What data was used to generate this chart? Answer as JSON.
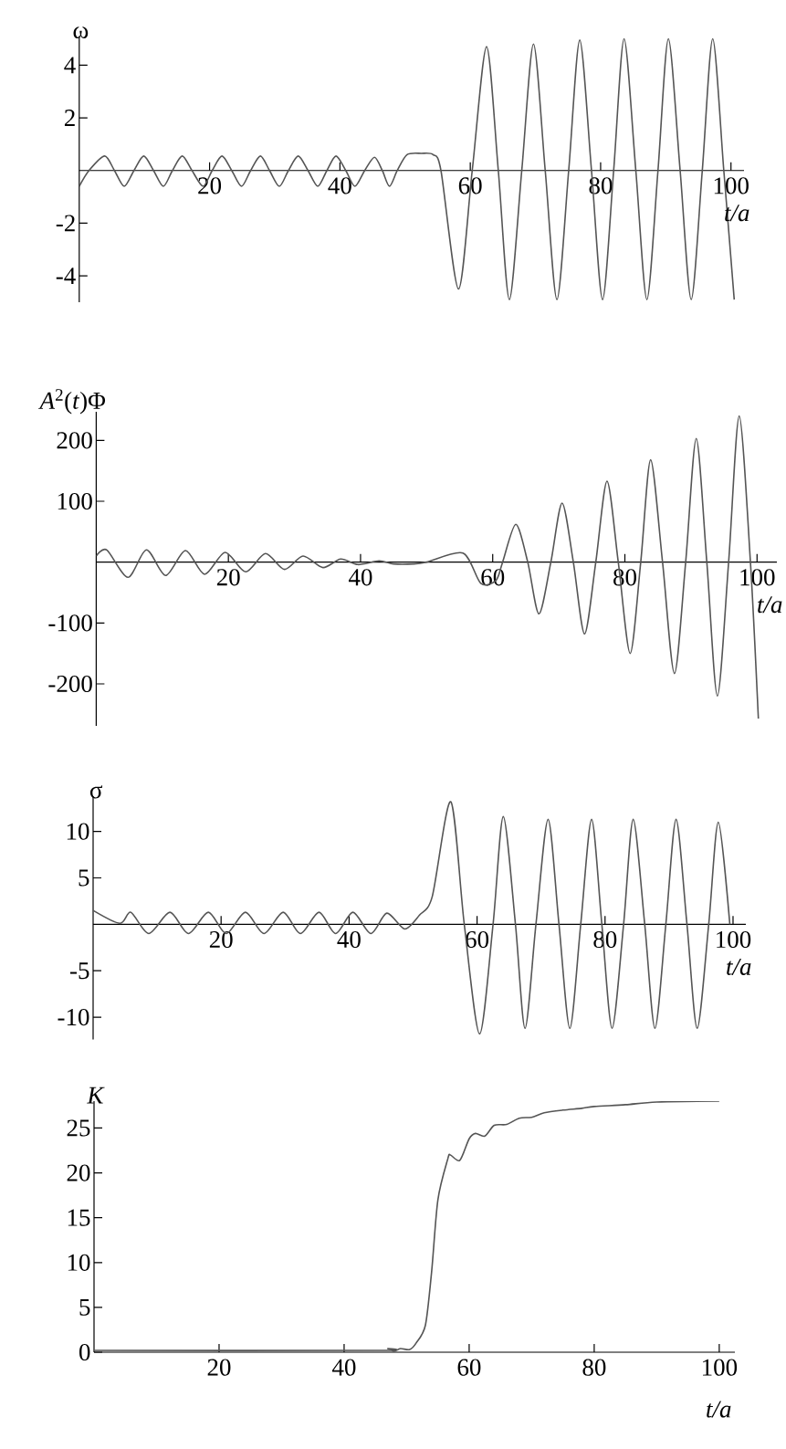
{
  "chart_data": [
    {
      "type": "line",
      "ylabel": "ω",
      "xlabel": "t/a",
      "xlim": [
        0,
        102
      ],
      "ylim": [
        -5,
        5.1
      ],
      "xticks": [
        20,
        40,
        60,
        80,
        100
      ],
      "yticks": [
        -4,
        -2,
        2,
        4
      ],
      "x": [
        0,
        1.5,
        3.9,
        5.4,
        6.9,
        8.4,
        9.9,
        11.4,
        12.9,
        14.3,
        15.8,
        17.3,
        19.0,
        20.4,
        21.9,
        23.4,
        24.9,
        26.3,
        27.8,
        29.2,
        30.7,
        32.1,
        33.6,
        35.1,
        36.6,
        38.0,
        39.4,
        40.9,
        42.3,
        43.8,
        45.3,
        46.5,
        47.6,
        48.8,
        50.3,
        52.5,
        54.3,
        55.5,
        58.2,
        60.3,
        62.5,
        64.3,
        66,
        67.9,
        69.7,
        71.5,
        73.3,
        75.1,
        76.8,
        78.6,
        80.3,
        82,
        83.6,
        85.4,
        87.1,
        88.8,
        90.4,
        92.2,
        93.9,
        95.6,
        97.2,
        98.9,
        100.5
      ],
      "series": [
        {
          "color": "#555555",
          "values": [
            -0.6,
            0,
            0.55,
            0,
            -0.6,
            0,
            0.55,
            0,
            -0.6,
            0,
            0.55,
            0,
            -0.6,
            0,
            0.55,
            0,
            -0.6,
            0,
            0.55,
            0,
            -0.6,
            0,
            0.55,
            0,
            -0.6,
            0,
            0.55,
            0,
            -0.6,
            0,
            0.5,
            0,
            -0.6,
            0,
            0.6,
            0.65,
            0.6,
            0,
            -4.5,
            0,
            4.7,
            0,
            -4.9,
            0,
            4.8,
            0,
            -4.9,
            0,
            4.95,
            0,
            -4.9,
            0,
            5.0,
            0,
            -4.9,
            0,
            5.0,
            0,
            -4.9,
            0,
            5.0,
            0,
            -4.9
          ]
        }
      ]
    },
    {
      "type": "line",
      "ylabel": "*A*$^{2}$(*t*)Φ",
      "xlabel": "t/a",
      "xlim": [
        0,
        103
      ],
      "ylim": [
        -269,
        247
      ],
      "xticks": [
        20,
        40,
        60,
        80,
        100
      ],
      "yticks": [
        -200,
        -100,
        100,
        200
      ],
      "x": [
        0,
        1.6,
        4.8,
        7.6,
        10.5,
        13.5,
        16.4,
        19.5,
        22.6,
        25.6,
        28.5,
        31.3,
        34.3,
        37,
        39.6,
        42.8,
        45,
        48,
        50,
        55.5,
        58.2,
        60.5,
        61.5,
        63.5,
        65.3,
        67,
        68.8,
        70.5,
        72.2,
        73.9,
        75.6,
        77.3,
        79,
        80.8,
        82.4,
        83.9,
        85.7,
        87.5,
        89.2,
        90.8,
        92.4,
        94,
        95.7,
        97.3,
        99,
        100.2
      ],
      "series": [
        {
          "color": "#555555",
          "values": [
            10,
            20,
            -25,
            20,
            -22,
            19,
            -20,
            16,
            -16,
            14,
            -12,
            10,
            -9,
            5,
            -4,
            2,
            -3,
            -3,
            0,
            15,
            -35,
            -30,
            0,
            62,
            0,
            -85,
            0,
            97,
            0,
            -118,
            0,
            133,
            0,
            -150,
            0,
            168,
            0,
            -183,
            0,
            203,
            0,
            -220,
            0,
            240,
            0,
            -257
          ]
        }
      ]
    },
    {
      "type": "line",
      "ylabel": "σ",
      "xlabel": "t/a",
      "xlim": [
        0,
        102
      ],
      "ylim": [
        -12.4,
        13.8
      ],
      "xticks": [
        20,
        40,
        60,
        80,
        100
      ],
      "yticks": [
        -10,
        -5,
        5,
        10
      ],
      "x": [
        0,
        4.2,
        5.9,
        8.7,
        12,
        14.9,
        18,
        20.8,
        23.8,
        26.7,
        29.7,
        32.4,
        35.3,
        37.9,
        40.6,
        43.4,
        45.9,
        48.7,
        51,
        53,
        55.9,
        58,
        60.4,
        62.5,
        64.1,
        66,
        67.5,
        69.2,
        71.1,
        72.8,
        74.5,
        76.2,
        77.9,
        79.5,
        81.1,
        82.9,
        84.4,
        86.2,
        87.8,
        89.5,
        91.1,
        92.8,
        94.4,
        96.2,
        97.7,
        99.5
      ],
      "series": [
        {
          "color": "#555555",
          "values": [
            1.5,
            0.1,
            1.3,
            -1,
            1.3,
            -1,
            1.3,
            -1,
            1.3,
            -1,
            1.3,
            -1,
            1.3,
            -1,
            1.3,
            -1,
            1.2,
            -0.5,
            1,
            3,
            13.2,
            0,
            -11.8,
            0,
            11.6,
            0,
            -11.2,
            0,
            11.3,
            0,
            -11.2,
            0,
            11.3,
            0,
            -11.2,
            0,
            11.3,
            0,
            -11.2,
            0,
            11.3,
            0,
            -11.2,
            0,
            11.0,
            0
          ]
        }
      ]
    },
    {
      "type": "line",
      "ylabel": "K",
      "xlabel": "t/a",
      "xlim": [
        0,
        102.5
      ],
      "ylim": [
        0,
        28
      ],
      "xticks": [
        20,
        40,
        60,
        80,
        100
      ],
      "yticks": [
        0,
        5,
        10,
        15,
        20,
        25
      ],
      "x": [
        0,
        45,
        47,
        48,
        49,
        50.5,
        51.5,
        53,
        54,
        55,
        56.6,
        57,
        58.5,
        60,
        61,
        62.5,
        64,
        66,
        68,
        70,
        72,
        75,
        78,
        80,
        85,
        90,
        100
      ],
      "series": [
        {
          "color": "#555555",
          "values": [
            0.2,
            0.2,
            0.4,
            0.1,
            0.4,
            0.3,
            1,
            3,
            9,
            17,
            21.6,
            22,
            21.4,
            23.8,
            24.4,
            24.1,
            25.3,
            25.4,
            26.1,
            26.2,
            26.7,
            27,
            27.2,
            27.4,
            27.6,
            27.9,
            28.0
          ]
        }
      ]
    }
  ]
}
